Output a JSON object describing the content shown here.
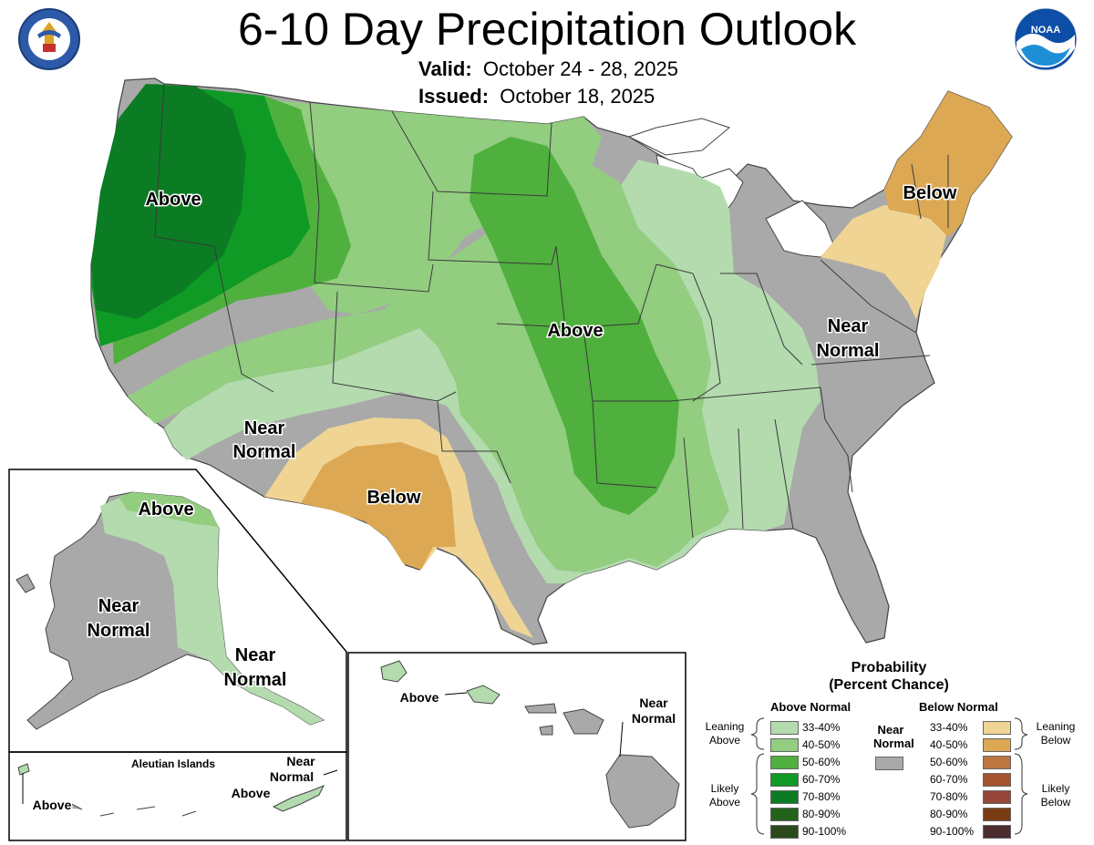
{
  "header": {
    "title": "6-10 Day Precipitation Outlook",
    "valid_label": "Valid:",
    "valid_value": "October 24 - 28, 2025",
    "issued_label": "Issued:",
    "issued_value": "October 18, 2025"
  },
  "logos": {
    "left": "department-of-commerce-seal",
    "right": "noaa-logo"
  },
  "map_labels": {
    "west_above": "Above",
    "central_above": "Above",
    "northeast_below": "Below",
    "southwest_below": "Below",
    "southwest_near": [
      "Near",
      "Normal"
    ],
    "east_near": [
      "Near",
      "Normal"
    ],
    "alaska_above": "Above",
    "alaska_near_west": [
      "Near",
      "Normal"
    ],
    "alaska_near_southeast": [
      "Near",
      "Normal"
    ],
    "aleutian_title": "Aleutian Islands",
    "aleutian_above_left": "Above",
    "aleutian_above_right": "Above",
    "aleutian_near": [
      "Near",
      "Normal"
    ],
    "hawaii_above": "Above",
    "hawaii_near": [
      "Near",
      "Normal"
    ]
  },
  "legend": {
    "title_line1": "Probability",
    "title_line2": "(Percent Chance)",
    "above_header": "Above Normal",
    "below_header": "Below Normal",
    "near_header_line1": "Near",
    "near_header_line2": "Normal",
    "leaning_above": [
      "Leaning",
      "Above"
    ],
    "likely_above": [
      "Likely",
      "Above"
    ],
    "leaning_below": [
      "Leaning",
      "Below"
    ],
    "likely_below": [
      "Likely",
      "Below"
    ],
    "above_rows": [
      {
        "range": "33-40%",
        "color": "#b3dbae"
      },
      {
        "range": "40-50%",
        "color": "#92cd80"
      },
      {
        "range": "50-60%",
        "color": "#4fb03d"
      },
      {
        "range": "60-70%",
        "color": "#0f9a25"
      },
      {
        "range": "70-80%",
        "color": "#0b7c24"
      },
      {
        "range": "80-90%",
        "color": "#22621b"
      },
      {
        "range": "90-100%",
        "color": "#2b4a19"
      }
    ],
    "below_rows": [
      {
        "range": "33-40%",
        "color": "#f0d494"
      },
      {
        "range": "40-50%",
        "color": "#dca854"
      },
      {
        "range": "50-60%",
        "color": "#bd7640"
      },
      {
        "range": "60-70%",
        "color": "#a6532f"
      },
      {
        "range": "70-80%",
        "color": "#96463b"
      },
      {
        "range": "80-90%",
        "color": "#7a3b12"
      },
      {
        "range": "90-100%",
        "color": "#4b2c2f"
      }
    ],
    "near_color": "#a9a9a9"
  }
}
